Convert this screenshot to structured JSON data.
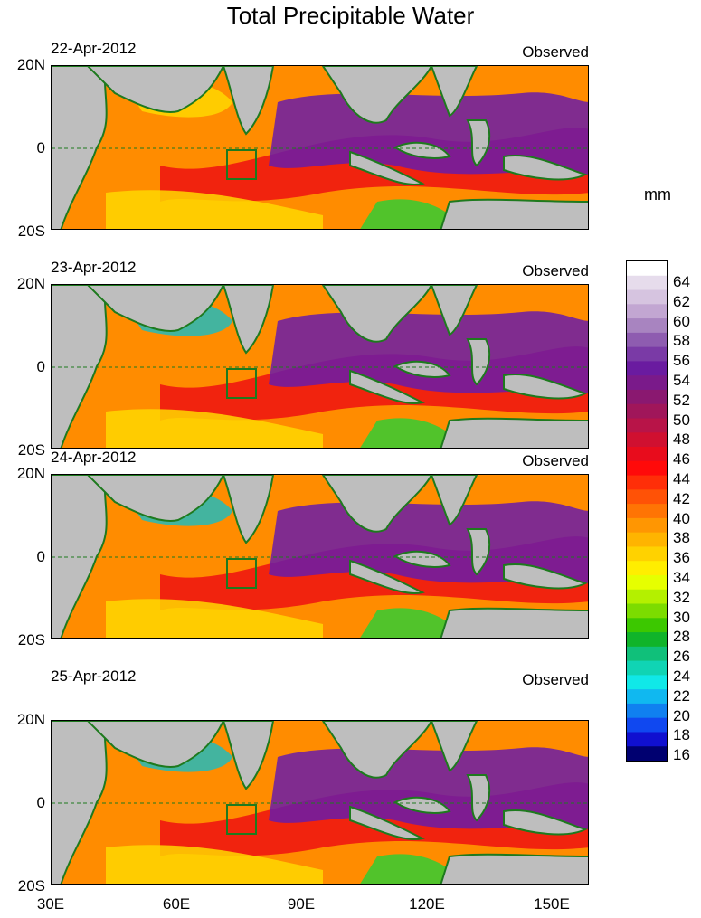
{
  "title": "Total Precipitable Water",
  "units": "mm",
  "panels": [
    {
      "date": "22-Apr-2012",
      "label": "Observed"
    },
    {
      "date": "23-Apr-2012",
      "label": "Observed"
    },
    {
      "date": "24-Apr-2012",
      "label": "Observed"
    },
    {
      "date": "25-Apr-2012",
      "label": "Observed"
    }
  ],
  "lat_labels": [
    "20N",
    "0",
    "20S"
  ],
  "lon_labels": [
    "30E",
    "60E",
    "90E",
    "120E",
    "150E"
  ],
  "colorbar_labels": [
    "64",
    "62",
    "60",
    "58",
    "56",
    "54",
    "52",
    "50",
    "48",
    "46",
    "44",
    "42",
    "40",
    "38",
    "36",
    "34",
    "32",
    "30",
    "28",
    "26",
    "24",
    "22",
    "20",
    "18",
    "16"
  ],
  "colors": {
    "land": "#bebebe",
    "coast": "#1e7a1e",
    "ocean_base": "#ff8c00",
    "moist_low": "#ffd700",
    "moist_mid": "#ee1111",
    "moist_high": "#6a1ba8",
    "dry": "#22bbbb"
  }
}
